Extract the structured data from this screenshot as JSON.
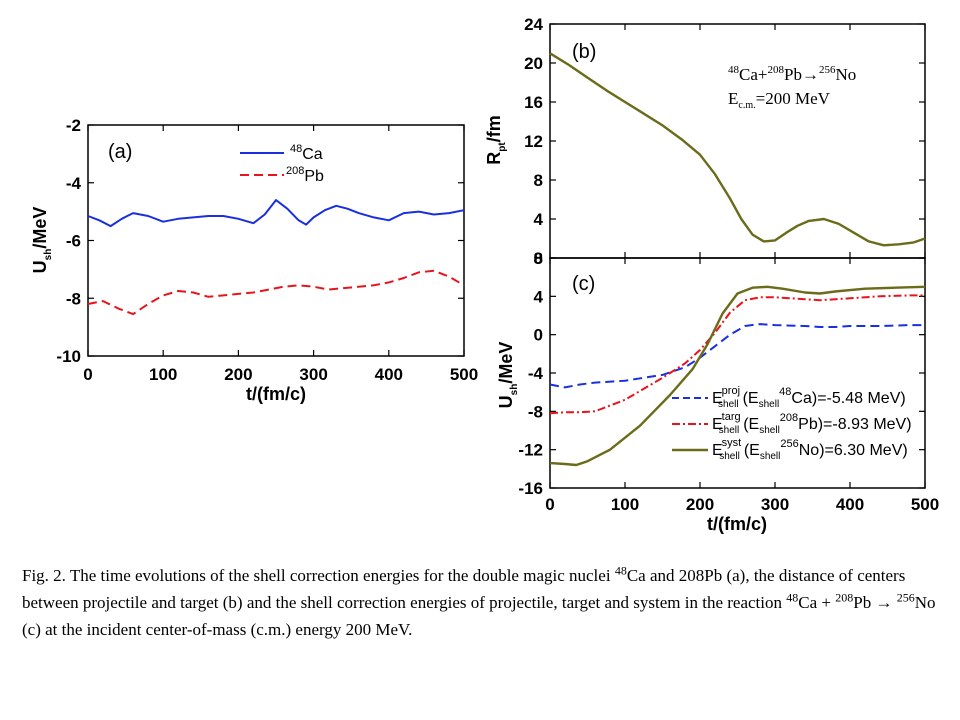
{
  "chart_data": [
    {
      "type": "line",
      "panel_label": "(a)",
      "xlabel": "t/(fm/c)",
      "ylabel_main": "U",
      "ylabel_sub": "sh",
      "ylabel_unit": "/MeV",
      "xlim": [
        0,
        500
      ],
      "ylim": [
        -10,
        -2
      ],
      "xticks": [
        "0",
        "100",
        "200",
        "300",
        "400",
        "500"
      ],
      "yticks": [
        "-2",
        "-4",
        "-6",
        "-8",
        "-10"
      ],
      "xtick_values": [
        0,
        100,
        200,
        300,
        400,
        500
      ],
      "ytick_values": [
        -2,
        -4,
        -6,
        -8,
        -10
      ],
      "legend_position": "top-right",
      "series": [
        {
          "name_sup": "48",
          "name_main": "Ca",
          "color": "#1a2fe0",
          "dash": "solid",
          "x": [
            0,
            15,
            30,
            45,
            60,
            80,
            100,
            120,
            140,
            160,
            180,
            200,
            220,
            235,
            250,
            265,
            280,
            290,
            300,
            315,
            330,
            345,
            360,
            380,
            400,
            420,
            440,
            460,
            480,
            500
          ],
          "y": [
            -5.15,
            -5.3,
            -5.5,
            -5.25,
            -5.05,
            -5.15,
            -5.35,
            -5.25,
            -5.2,
            -5.15,
            -5.15,
            -5.25,
            -5.4,
            -5.1,
            -4.6,
            -4.9,
            -5.3,
            -5.45,
            -5.2,
            -4.95,
            -4.8,
            -4.9,
            -5.05,
            -5.2,
            -5.3,
            -5.05,
            -5.0,
            -5.1,
            -5.05,
            -4.95
          ]
        },
        {
          "name_sup": "208",
          "name_main": "Pb",
          "color": "#e8141c",
          "dash": "dashed",
          "x": [
            0,
            20,
            40,
            60,
            80,
            100,
            120,
            140,
            160,
            180,
            200,
            220,
            240,
            260,
            280,
            300,
            320,
            340,
            360,
            380,
            400,
            420,
            440,
            460,
            480,
            500
          ],
          "y": [
            -8.2,
            -8.1,
            -8.35,
            -8.55,
            -8.2,
            -7.9,
            -7.75,
            -7.8,
            -7.95,
            -7.9,
            -7.85,
            -7.8,
            -7.7,
            -7.6,
            -7.55,
            -7.6,
            -7.7,
            -7.65,
            -7.6,
            -7.55,
            -7.45,
            -7.3,
            -7.1,
            -7.05,
            -7.25,
            -7.55
          ]
        }
      ]
    },
    {
      "type": "line",
      "panel_label": "(b)",
      "ylabel_main": "R",
      "ylabel_sub": "pt",
      "ylabel_unit": "/fm",
      "xlim": [
        0,
        500
      ],
      "ylim": [
        0,
        24
      ],
      "yticks": [
        "0",
        "4",
        "8",
        "12",
        "16",
        "20",
        "24"
      ],
      "ytick_values": [
        0,
        4,
        8,
        12,
        16,
        20,
        24
      ],
      "annotation_reaction": {
        "a_sup": "48",
        "a": "Ca+",
        "b_sup": "208",
        "b": "Pb",
        "arrow": "→",
        "c_sup": "256",
        "c": "No"
      },
      "annotation_energy": {
        "e": "E",
        "e_sub": "c.m.",
        "value": "=200 MeV"
      },
      "series": [
        {
          "color": "#6b6b1a",
          "dash": "solid",
          "x": [
            0,
            25,
            50,
            75,
            100,
            125,
            150,
            175,
            200,
            220,
            240,
            255,
            270,
            285,
            300,
            315,
            330,
            345,
            365,
            385,
            405,
            425,
            445,
            465,
            485,
            500
          ],
          "y": [
            21,
            19.8,
            18.5,
            17.2,
            16,
            14.8,
            13.6,
            12.2,
            10.6,
            8.6,
            6.1,
            4.0,
            2.4,
            1.7,
            1.8,
            2.6,
            3.3,
            3.8,
            4.0,
            3.5,
            2.6,
            1.7,
            1.3,
            1.4,
            1.6,
            2.0
          ]
        }
      ]
    },
    {
      "type": "line",
      "panel_label": "(c)",
      "xlabel": "t/(fm/c)",
      "ylabel_main": "U",
      "ylabel_sub": "sh",
      "ylabel_unit": "/MeV",
      "xlim": [
        0,
        500
      ],
      "ylim": [
        -16,
        8
      ],
      "xticks": [
        "0",
        "100",
        "200",
        "300",
        "400",
        "500"
      ],
      "yticks": [
        "-16",
        "-12",
        "-8",
        "-4",
        "0",
        "4",
        "8"
      ],
      "xtick_values": [
        0,
        100,
        200,
        300,
        400,
        500
      ],
      "ytick_values": [
        -16,
        -12,
        -8,
        -4,
        0,
        4,
        8
      ],
      "legend_position": "bottom-right",
      "series": [
        {
          "legend_sup": "proj",
          "legend_main": "E",
          "legend_sub": "shell",
          "legend_paren": "(E",
          "legend_paren_sub": "shell",
          "legend_iso_sup": "48",
          "legend_iso": "Ca)=-5.48 MeV)",
          "color": "#1a2fe0",
          "dash": "dashed",
          "x": [
            0,
            20,
            40,
            60,
            100,
            150,
            180,
            200,
            220,
            240,
            260,
            280,
            300,
            340,
            360,
            380,
            400,
            440,
            480,
            500
          ],
          "y": [
            -5.2,
            -5.5,
            -5.2,
            -5.0,
            -4.8,
            -4.2,
            -3.4,
            -2.4,
            -1.2,
            0.0,
            0.9,
            1.1,
            1.0,
            0.9,
            0.8,
            0.8,
            0.9,
            0.9,
            1.0,
            1.0
          ]
        },
        {
          "legend_sup": "targ",
          "legend_main": "E",
          "legend_sub": "shell",
          "legend_paren": "(E",
          "legend_paren_sub": "shell",
          "legend_iso_sup": "208",
          "legend_iso": "Pb)=-8.93 MeV)",
          "color": "#e8141c",
          "dash": "dashdot",
          "x": [
            0,
            20,
            40,
            60,
            100,
            150,
            180,
            200,
            220,
            240,
            260,
            280,
            300,
            340,
            360,
            400,
            440,
            480,
            500
          ],
          "y": [
            -8.2,
            -8.1,
            -8.1,
            -8.0,
            -6.8,
            -4.5,
            -3.0,
            -1.6,
            0.2,
            2.3,
            3.6,
            3.9,
            3.9,
            3.7,
            3.6,
            3.8,
            4.0,
            4.1,
            4.1
          ]
        },
        {
          "legend_sup": "syst",
          "legend_main": "E",
          "legend_sub": "shell",
          "legend_paren": "(E",
          "legend_paren_sub": "shell",
          "legend_iso_sup": "256",
          "legend_iso": "No)=6.30 MeV)",
          "color": "#6b6b1a",
          "dash": "solid",
          "x": [
            0,
            20,
            35,
            50,
            80,
            120,
            160,
            190,
            210,
            230,
            250,
            270,
            290,
            310,
            340,
            360,
            380,
            420,
            460,
            500
          ],
          "y": [
            -13.4,
            -13.5,
            -13.6,
            -13.2,
            -12.0,
            -9.5,
            -6.3,
            -3.6,
            -1.0,
            2.2,
            4.3,
            4.9,
            5.0,
            4.8,
            4.4,
            4.3,
            4.5,
            4.8,
            4.9,
            5.0
          ]
        }
      ]
    }
  ],
  "caption": {
    "p1": "Fig. 2. The time evolutions of the shell correction energies for the double magic nuclei ",
    "s1": "48",
    "p2": "Ca and 208Pb (a), the distance of centers between projectile and target (b) and the shell correction energies of projectile, target and system in the reaction ",
    "s2": "48",
    "p3": "Ca + ",
    "s3": "208",
    "p4": "Pb → ",
    "s4": "256",
    "p5": "No (c) at the incident center-of-mass (c.m.) energy 200 MeV."
  }
}
